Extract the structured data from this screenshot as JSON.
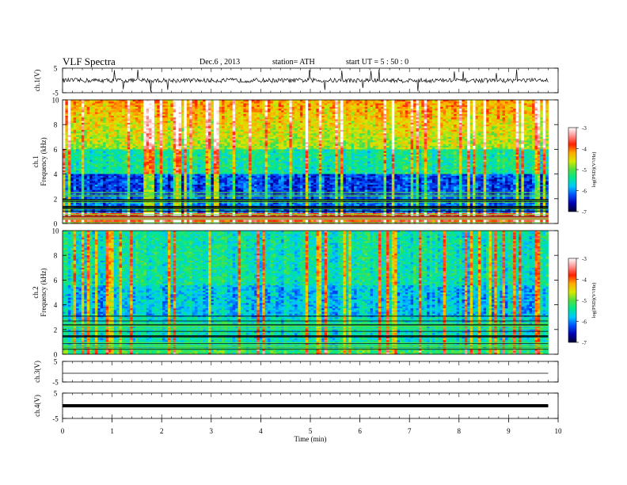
{
  "header": {
    "title": "VLF  Spectra",
    "date": "Dec.6  , 2013",
    "station": "station= ATH",
    "start": "start  UT  =  5  : 50 : 0"
  },
  "chart_data": [
    {
      "type": "line",
      "name": "ch1-waveform",
      "ylabel": "ch.1(V)",
      "ylim": [
        -5,
        5
      ],
      "yticks": [
        "5",
        "-5"
      ],
      "xlim": [
        0,
        10
      ],
      "description_level_V": 0
    },
    {
      "type": "heatmap",
      "name": "ch1-spectrogram",
      "ylabel": [
        "ch.1",
        "Frequency  (kHz)"
      ],
      "ylim": [
        0,
        10
      ],
      "yticks": [
        "0",
        "2",
        "4",
        "6",
        "8",
        "10"
      ],
      "xlim": [
        0,
        9.8
      ],
      "colorbar": {
        "label": "log(PSD)(V²/Hz)",
        "range": [
          -7,
          -3
        ],
        "ticks": [
          "-3",
          "-4",
          "-5",
          "-6",
          "-7"
        ]
      }
    },
    {
      "type": "heatmap",
      "name": "ch2-spectrogram",
      "ylabel": [
        "ch.2",
        "Frequency  (kHz)"
      ],
      "ylim": [
        0,
        10
      ],
      "yticks": [
        "0",
        "2",
        "4",
        "6",
        "8",
        "10"
      ],
      "xlim": [
        0,
        9.8
      ],
      "colorbar": {
        "label": "log(PSD)(V²/Hz)",
        "range": [
          -7,
          -3
        ],
        "ticks": [
          "-3",
          "-4",
          "-5",
          "-6",
          "-7"
        ]
      }
    },
    {
      "type": "line",
      "name": "ch3-waveform",
      "ylabel": "ch.3(V)",
      "ylim": [
        -5,
        5
      ],
      "yticks": [
        "5",
        "-5"
      ],
      "level_V": 0
    },
    {
      "type": "line",
      "name": "ch4-waveform",
      "ylabel": "ch.4(V)",
      "ylim": [
        -5,
        5
      ],
      "yticks": [
        "5",
        "-5"
      ],
      "level_V": 0
    }
  ],
  "xaxis": {
    "label": "Time  (min)",
    "ticks": [
      "0",
      "1",
      "2",
      "3",
      "4",
      "5",
      "6",
      "7",
      "8",
      "9",
      "10"
    ],
    "range": [
      0,
      10
    ]
  },
  "colors": {
    "colormap": [
      "#000033",
      "#0000b0",
      "#0050ff",
      "#00c8ff",
      "#00e890",
      "#50e040",
      "#d8e800",
      "#ffaa00",
      "#ff2000",
      "#ff9090",
      "#ffffff"
    ]
  }
}
